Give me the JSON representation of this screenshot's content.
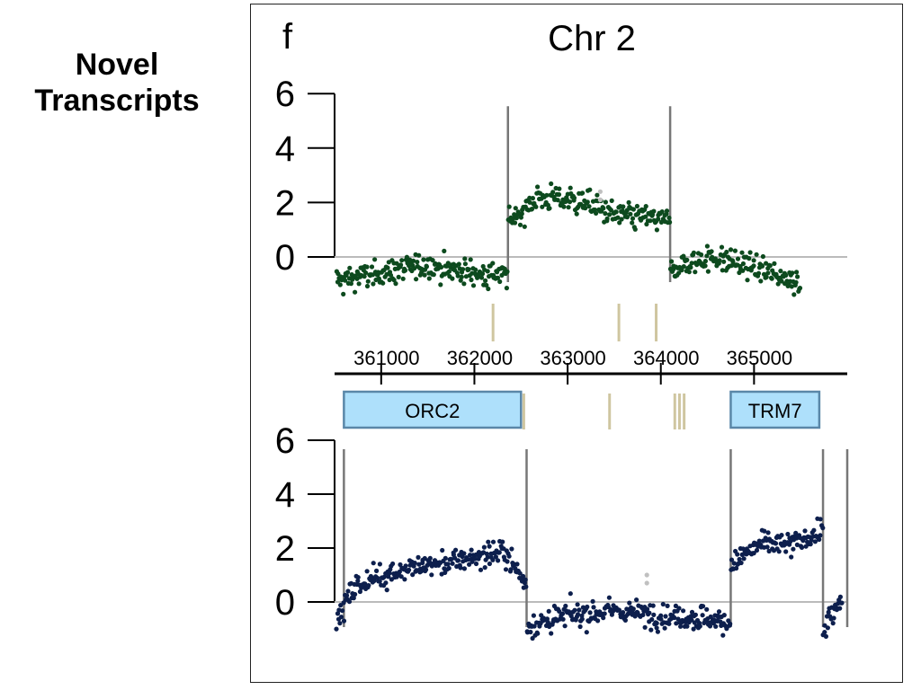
{
  "side_label": {
    "line1": "Novel",
    "line2": "Transcripts"
  },
  "panel_letter": "f",
  "title": "Chr 2",
  "colors": {
    "top_points": "#0d4a1e",
    "bottom_points": "#0d1f4d",
    "masked_points": "#c0c0c0",
    "boundary_lines": "#777777",
    "zero_line": "#bbbbbb",
    "novel_marks": "#cfc6a0",
    "gene_fill": "#aee0fb",
    "gene_stroke": "#5a87a8"
  },
  "coordinate_axis": {
    "range": [
      360500,
      366000
    ],
    "ticks": [
      361000,
      362000,
      363000,
      364000,
      365000
    ],
    "tick_labels": [
      "361000",
      "362000",
      "363000",
      "364000",
      "365000"
    ]
  },
  "genes": [
    {
      "name": "ORC2",
      "start": 360600,
      "end": 362500
    },
    {
      "name": "TRM7",
      "start": 364750,
      "end": 365700
    }
  ],
  "chart_data": [
    {
      "type": "scatter",
      "panel": "top",
      "ylim": [
        -1.5,
        6
      ],
      "yticks": [
        0,
        2,
        4,
        6
      ],
      "ytick_labels": [
        "6",
        "4",
        "2",
        "0"
      ],
      "boundaries": [
        362360,
        364100
      ],
      "novel_transcript_marks": [
        362200,
        363550,
        363950
      ],
      "segments": [
        {
          "x": [
            360500,
            361000,
            361500,
            362000,
            362359
          ],
          "y": [
            -0.9,
            -0.6,
            -0.3,
            -0.6,
            -0.7
          ]
        },
        {
          "x": [
            362360,
            362700,
            363100,
            363500,
            364099
          ],
          "y": [
            1.3,
            2.2,
            2.1,
            1.6,
            1.3
          ]
        },
        {
          "x": [
            364100,
            364500,
            364900,
            365200,
            365500
          ],
          "y": [
            -0.5,
            0.0,
            -0.3,
            -0.6,
            -0.9
          ]
        }
      ]
    },
    {
      "type": "scatter",
      "panel": "bottom",
      "ylim": [
        -1.5,
        6
      ],
      "yticks": [
        0,
        2,
        4,
        6
      ],
      "ytick_labels": [
        "6",
        "4",
        "2",
        "0"
      ],
      "boundaries": [
        360600,
        362560,
        364750,
        365740,
        366000
      ],
      "novel_transcript_marks": [
        362530,
        363450,
        364150,
        364200,
        364250
      ],
      "segments": [
        {
          "x": [
            360500,
            360700,
            361200,
            361800,
            362300,
            362559
          ],
          "y": [
            -1.0,
            0.6,
            1.2,
            1.5,
            1.9,
            0.7
          ]
        },
        {
          "x": [
            362560,
            363000,
            363500,
            364000,
            364500,
            364749
          ],
          "y": [
            -0.9,
            -0.5,
            -0.3,
            -0.5,
            -0.6,
            -0.8
          ]
        },
        {
          "x": [
            364750,
            365100,
            365400,
            365739
          ],
          "y": [
            1.4,
            2.2,
            2.1,
            2.7
          ]
        },
        {
          "x": [
            365740,
            365850,
            365950
          ],
          "y": [
            -1.0,
            -0.5,
            0.2
          ]
        }
      ]
    }
  ]
}
